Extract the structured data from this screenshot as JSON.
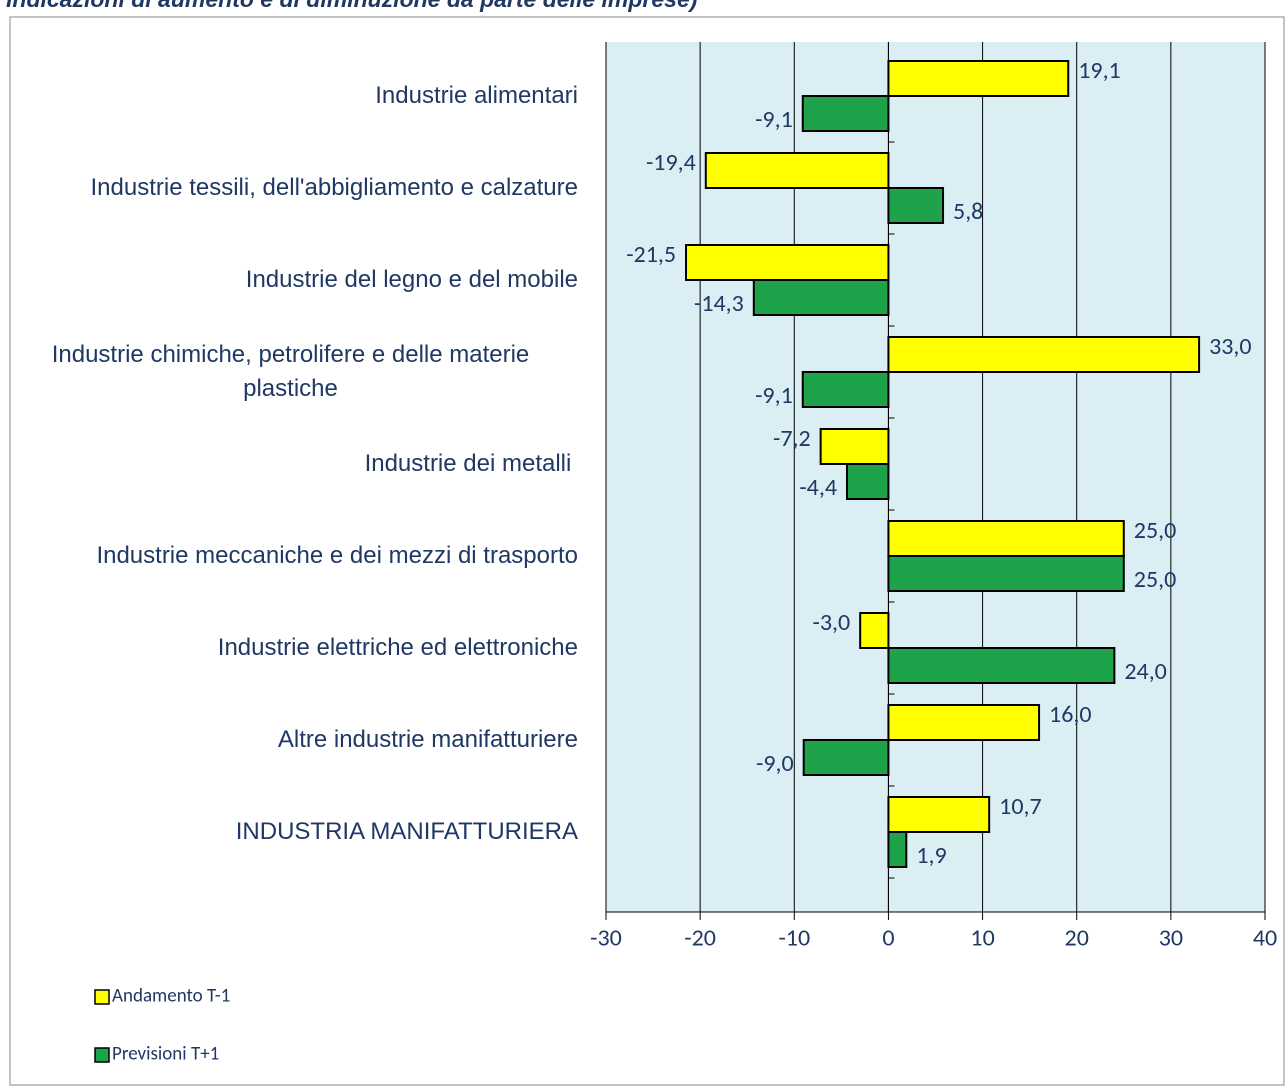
{
  "chart_data": {
    "type": "bar",
    "orientation": "horizontal",
    "title": "Indicazioni di aumento e di diminuzione da parte delle imprese)",
    "categories": [
      "Industrie alimentari",
      "Industrie tessili, dell'abbigliamento e calzature",
      "Industrie del legno e del mobile",
      "Industrie chimiche, petrolifere e delle materie plastiche",
      "Industrie dei metalli ",
      "Industrie meccaniche e dei mezzi di trasporto",
      "Industrie elettriche ed elettroniche",
      "Altre industrie manifatturiere",
      "INDUSTRIA MANIFATTURIERA"
    ],
    "series": [
      {
        "name": "Andamento T-1",
        "color": "#ffff00",
        "values": [
          19.1,
          -19.4,
          -21.5,
          33.0,
          -7.2,
          25.0,
          -3.0,
          16.0,
          10.7
        ],
        "value_labels": [
          "19,1",
          "-19,4",
          "-21,5",
          "33,0",
          "-7,2",
          "25,0",
          "-3,0",
          "16,0",
          "10,7"
        ]
      },
      {
        "name": "Previsioni T+1",
        "color": "#1fa34a",
        "values": [
          -9.1,
          5.8,
          -14.3,
          -9.1,
          -4.4,
          25.0,
          24.0,
          -9.0,
          1.9
        ],
        "value_labels": [
          "-9,1",
          "5,8",
          "-14,3",
          "-9,1",
          "-4,4",
          "25,0",
          "24,0",
          "-9,0",
          "1,9"
        ]
      }
    ],
    "xlim": [
      -30,
      40
    ],
    "xticks": [
      -30,
      -20,
      -10,
      0,
      10,
      20,
      30,
      40
    ],
    "grid": true,
    "legend": "bottom-left"
  }
}
